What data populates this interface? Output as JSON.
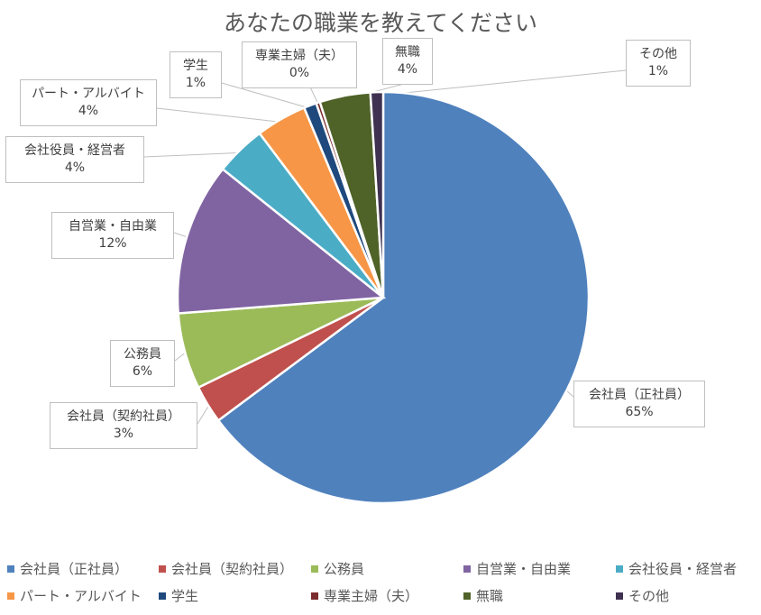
{
  "chart_data": {
    "type": "pie",
    "title": "あなたの職業を教えてください",
    "slices": [
      {
        "name": "会社員（正社員）",
        "value": 65,
        "label": "65%",
        "color": "#4F81BD"
      },
      {
        "name": "会社員（契約社員）",
        "value": 3,
        "label": "3%",
        "color": "#C0504D"
      },
      {
        "name": "公務員",
        "value": 6,
        "label": "6%",
        "color": "#9BBB59"
      },
      {
        "name": "自営業・自由業",
        "value": 12,
        "label": "12%",
        "color": "#8064A2"
      },
      {
        "name": "会社役員・経営者",
        "value": 4,
        "label": "4%",
        "color": "#4BACC6"
      },
      {
        "name": "パート・アルバイト",
        "value": 4,
        "label": "4%",
        "color": "#F79646"
      },
      {
        "name": "学生",
        "value": 1,
        "label": "1%",
        "color": "#1F497D"
      },
      {
        "name": "専業主婦（夫）",
        "value": 0.3,
        "label": "0%",
        "color": "#7B2C2C"
      },
      {
        "name": "無職",
        "value": 4,
        "label": "4%",
        "color": "#4F6228"
      },
      {
        "name": "その他",
        "value": 1,
        "label": "1%",
        "color": "#3F3151"
      }
    ],
    "legend_position": "bottom"
  }
}
